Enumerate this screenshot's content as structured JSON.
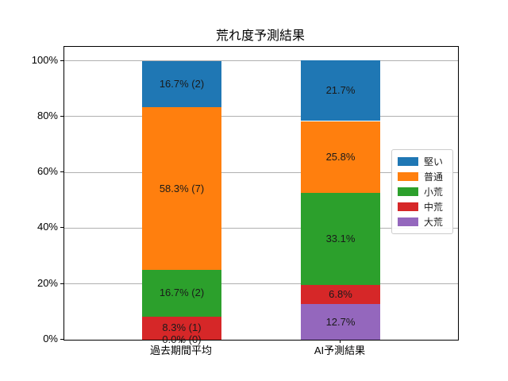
{
  "figure": {
    "background_color": "#ffffff",
    "text_color": "#000000",
    "grid_color": "#b0b0b0"
  },
  "chart_data": {
    "type": "bar",
    "subtype": "stacked-percentage",
    "title": "荒れ度予測結果",
    "xlabel": "",
    "ylabel": "",
    "categories": [
      "過去期間平均",
      "AI予測結果"
    ],
    "series": [
      {
        "name": "堅い",
        "color": "#1f77b4",
        "values": [
          16.7,
          21.7
        ],
        "labels": [
          "16.7% (2)",
          "21.7%"
        ]
      },
      {
        "name": "普通",
        "color": "#ff7f0e",
        "values": [
          58.3,
          25.8
        ],
        "labels": [
          "58.3% (7)",
          "25.8%"
        ]
      },
      {
        "name": "小荒",
        "color": "#2ca02c",
        "values": [
          16.7,
          33.1
        ],
        "labels": [
          "16.7% (2)",
          "33.1%"
        ]
      },
      {
        "name": "中荒",
        "color": "#d62728",
        "values": [
          8.3,
          6.8
        ],
        "labels": [
          "8.3% (1)",
          "6.8%"
        ]
      },
      {
        "name": "大荒",
        "color": "#9467bd",
        "values": [
          0.0,
          12.7
        ],
        "labels": [
          "0.0% (0)",
          "12.7%"
        ]
      }
    ],
    "stack_order_bottom_to_top": [
      "大荒",
      "中荒",
      "小荒",
      "普通",
      "堅い"
    ],
    "ylim": [
      0,
      105
    ],
    "ytick_values": [
      0,
      20,
      40,
      60,
      80,
      100
    ],
    "ytick_labels": [
      "0%",
      "20%",
      "40%",
      "60%",
      "80%",
      "100%"
    ],
    "grid": true,
    "legend_position": "center-right-inside"
  }
}
